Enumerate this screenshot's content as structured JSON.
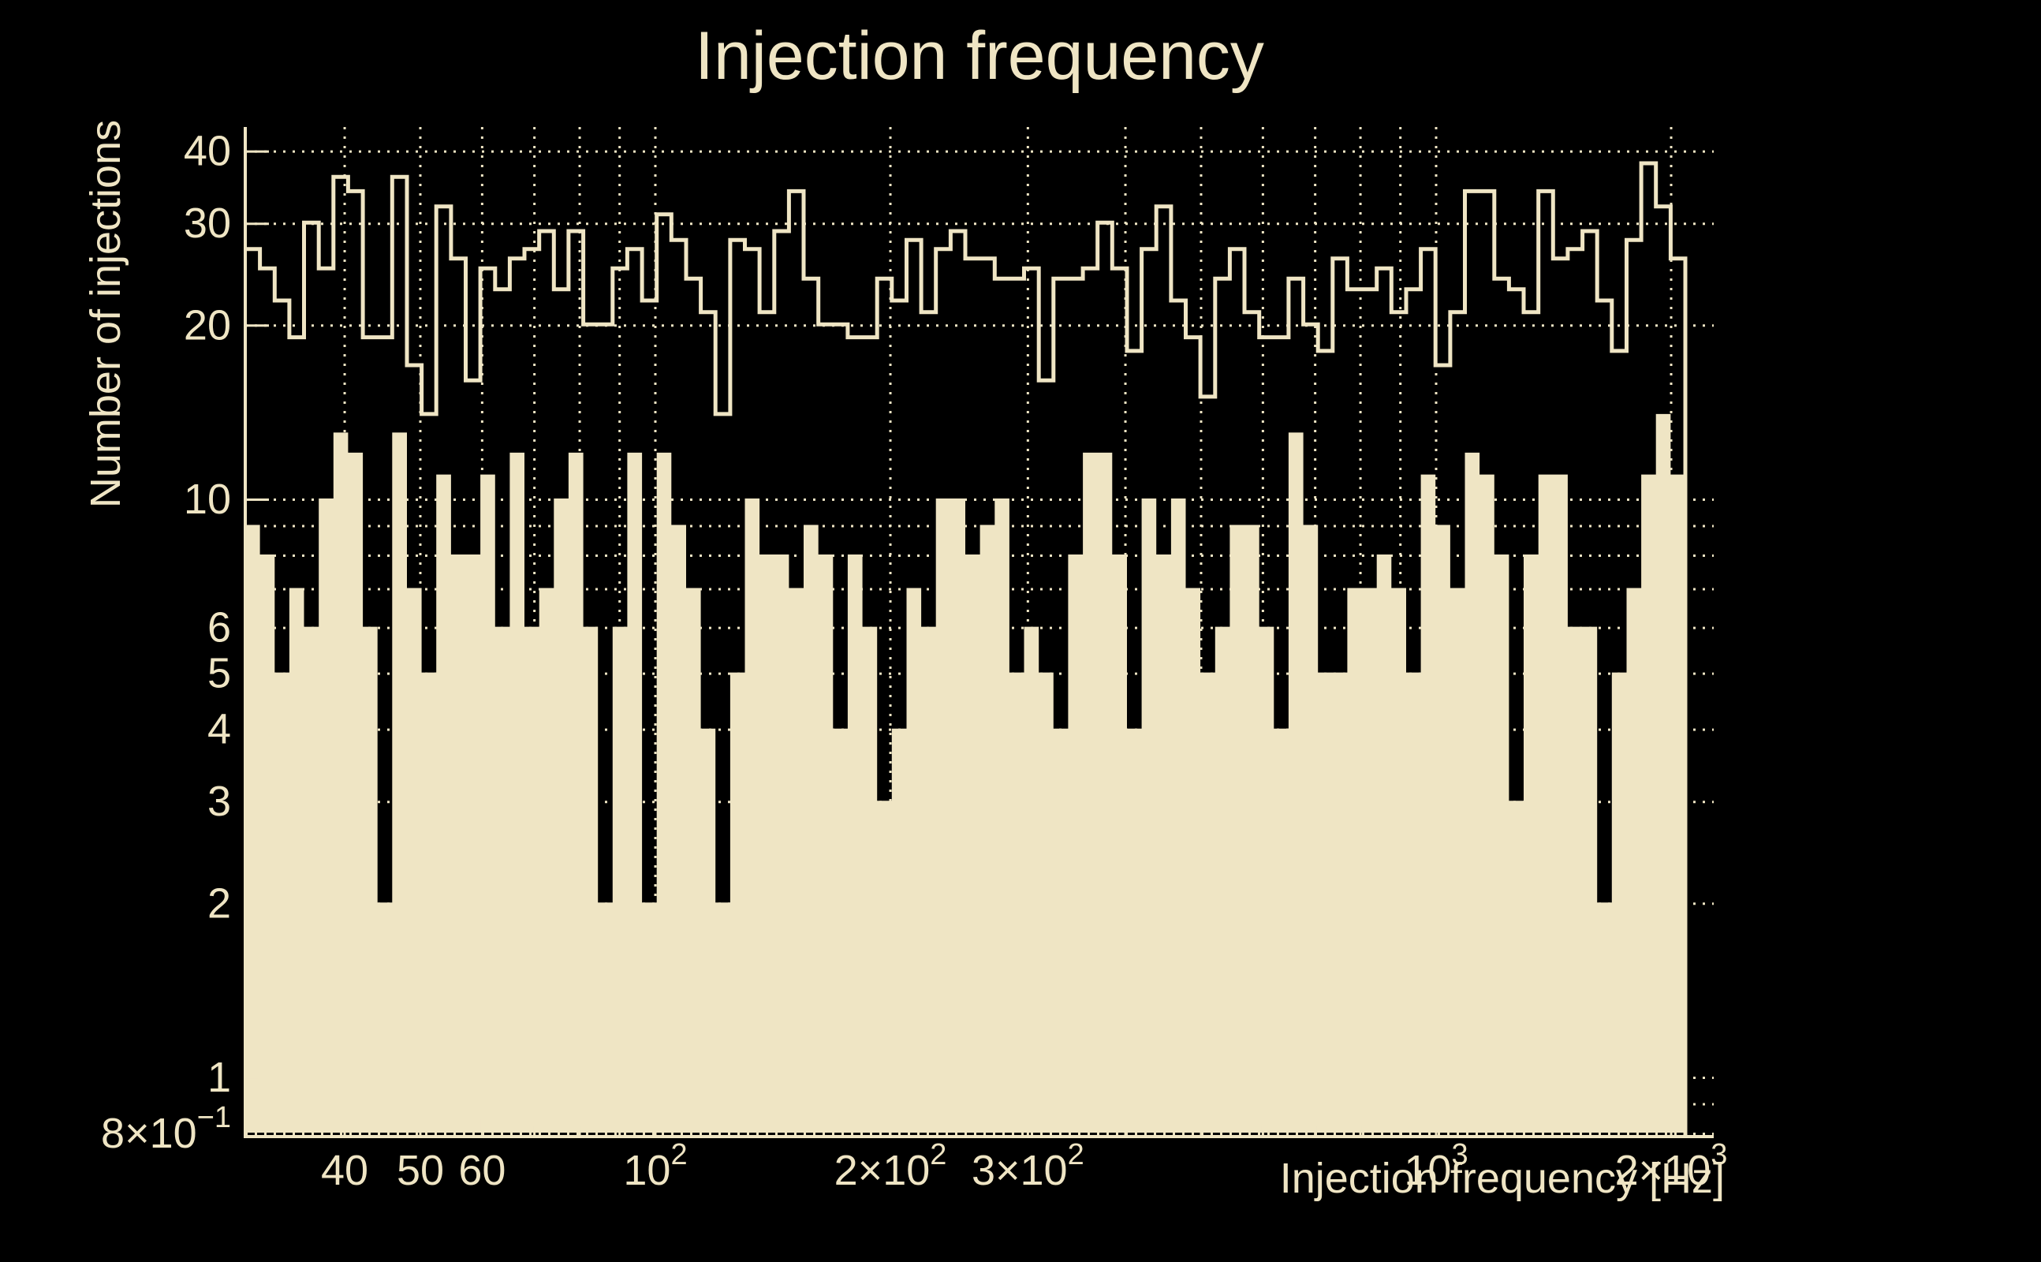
{
  "page": {
    "background": "#000000",
    "foreground": "#EFE5C4"
  },
  "chart_data": {
    "type": "bar",
    "subtype": "log-log step histogram (two series: open step outline + filled histogram)",
    "title": "Injection frequency",
    "xlabel": "Injection frequency [Hz]",
    "ylabel": "Number of injections",
    "xlim_hz": [
      29.9,
      2268
    ],
    "data_range_hz": [
      29.9,
      2085
    ],
    "ylim": [
      0.8,
      44
    ],
    "n_bins": 98,
    "bin_spacing": "log-uniform",
    "grid": {
      "on": true,
      "style": "dotted",
      "x_hz": [
        40,
        50,
        60,
        70,
        80,
        90,
        100,
        200,
        300,
        400,
        500,
        600,
        700,
        800,
        900,
        1000,
        2000
      ],
      "y": [
        0.8,
        0.9,
        1,
        2,
        3,
        4,
        5,
        6,
        7,
        8,
        9,
        10,
        20,
        30,
        40
      ]
    },
    "x_ticks": [
      {
        "hz": 40,
        "text": "40"
      },
      {
        "hz": 50,
        "text": "50"
      },
      {
        "hz": 60,
        "text": "60"
      },
      {
        "hz": 100,
        "pre": "",
        "base": "10",
        "exp": "2"
      },
      {
        "hz": 200,
        "pre": "2×",
        "base": "10",
        "exp": "2"
      },
      {
        "hz": 300,
        "pre": "3×",
        "base": "10",
        "exp": "2"
      },
      {
        "hz": 1000,
        "pre": "",
        "base": "10",
        "exp": "3"
      },
      {
        "hz": 2000,
        "pre": "2×",
        "base": "10",
        "exp": "3"
      }
    ],
    "y_ticks": [
      {
        "v": 40,
        "text": "40",
        "major": true
      },
      {
        "v": 30,
        "text": "30",
        "major": true
      },
      {
        "v": 20,
        "text": "20",
        "major": true
      },
      {
        "v": 10,
        "text": "10",
        "major": true
      },
      {
        "v": 6,
        "text": "6"
      },
      {
        "v": 5,
        "text": "5"
      },
      {
        "v": 4,
        "text": "4"
      },
      {
        "v": 3,
        "text": "3"
      },
      {
        "v": 2,
        "text": "2"
      },
      {
        "v": 1,
        "text": "1"
      },
      {
        "v": 0.8,
        "pre": "8×",
        "base": "10",
        "exp": "−1"
      }
    ],
    "series": [
      {
        "name": "all-injections-outline",
        "style": "step-outline",
        "values": [
          27,
          25,
          22,
          19,
          30,
          25,
          36,
          34,
          19,
          19,
          36,
          17,
          14,
          32,
          26,
          16,
          25,
          23,
          26,
          27,
          29,
          23,
          29,
          20,
          20,
          25,
          27,
          22,
          31,
          28,
          24,
          21,
          14,
          28,
          27,
          21,
          29,
          34,
          24,
          20,
          20,
          19,
          19,
          24,
          22,
          28,
          21,
          27,
          29,
          26,
          26,
          24,
          24,
          25,
          16,
          24,
          24,
          25,
          30,
          25,
          18,
          27,
          32,
          22,
          19,
          15,
          24,
          27,
          21,
          19,
          19,
          24,
          20,
          18,
          26,
          23,
          23,
          25,
          21,
          23,
          27,
          17,
          21,
          34,
          34,
          24,
          23,
          21,
          34,
          26,
          27,
          29,
          22,
          18,
          28,
          38,
          32,
          26
        ]
      },
      {
        "name": "selected-injections-filled",
        "style": "filled",
        "values": [
          9,
          8,
          5,
          7,
          6,
          10,
          13,
          12,
          6,
          2,
          13,
          7,
          5,
          11,
          8,
          8,
          11,
          6,
          12,
          6,
          7,
          10,
          12,
          6,
          2,
          6,
          12,
          2,
          12,
          9,
          7,
          4,
          2,
          5,
          10,
          8,
          8,
          7,
          9,
          8,
          4,
          8,
          6,
          3,
          4,
          7,
          6,
          10,
          10,
          8,
          9,
          10,
          5,
          6,
          5,
          4,
          8,
          12,
          12,
          8,
          4,
          10,
          8,
          10,
          7,
          5,
          6,
          9,
          9,
          6,
          4,
          13,
          9,
          5,
          5,
          7,
          7,
          8,
          7,
          5,
          11,
          9,
          7,
          12,
          11,
          8,
          3,
          8,
          11,
          11,
          6,
          6,
          2,
          5,
          7,
          11,
          14,
          11
        ]
      }
    ],
    "legend": null,
    "colors": {
      "accent": "#EFE5C4",
      "background": "#000000"
    }
  }
}
